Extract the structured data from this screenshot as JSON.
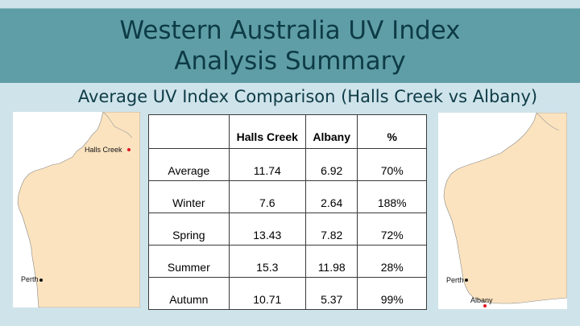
{
  "title": {
    "line1": "Western Australia UV Index",
    "line2": "Analysis Summary"
  },
  "subtitle": "Average UV Index Comparison (Halls Creek vs Albany)",
  "table": {
    "headers": [
      "",
      "Halls Creek",
      "Albany",
      "%"
    ],
    "rows": [
      [
        "Average",
        "11.74",
        "6.92",
        "70%"
      ],
      [
        "Winter",
        "7.6",
        "2.64",
        "188%"
      ],
      [
        "Spring",
        "13.43",
        "7.82",
        "72%"
      ],
      [
        "Summer",
        "15.3",
        "11.98",
        "28%"
      ],
      [
        "Autumn",
        "10.71",
        "5.37",
        "99%"
      ]
    ]
  },
  "map_left": {
    "labels": {
      "place": "Halls Creek",
      "city": "Perth"
    },
    "marker_color": "#e0141e"
  },
  "map_right": {
    "labels": {
      "place": "Albany",
      "city": "Perth"
    },
    "marker_color": "#e0141e"
  },
  "colors": {
    "land": "#fbe3bf",
    "title_band": "#5f9ea6",
    "background": "#cfe3ea",
    "title_text": "#0d3b46"
  }
}
